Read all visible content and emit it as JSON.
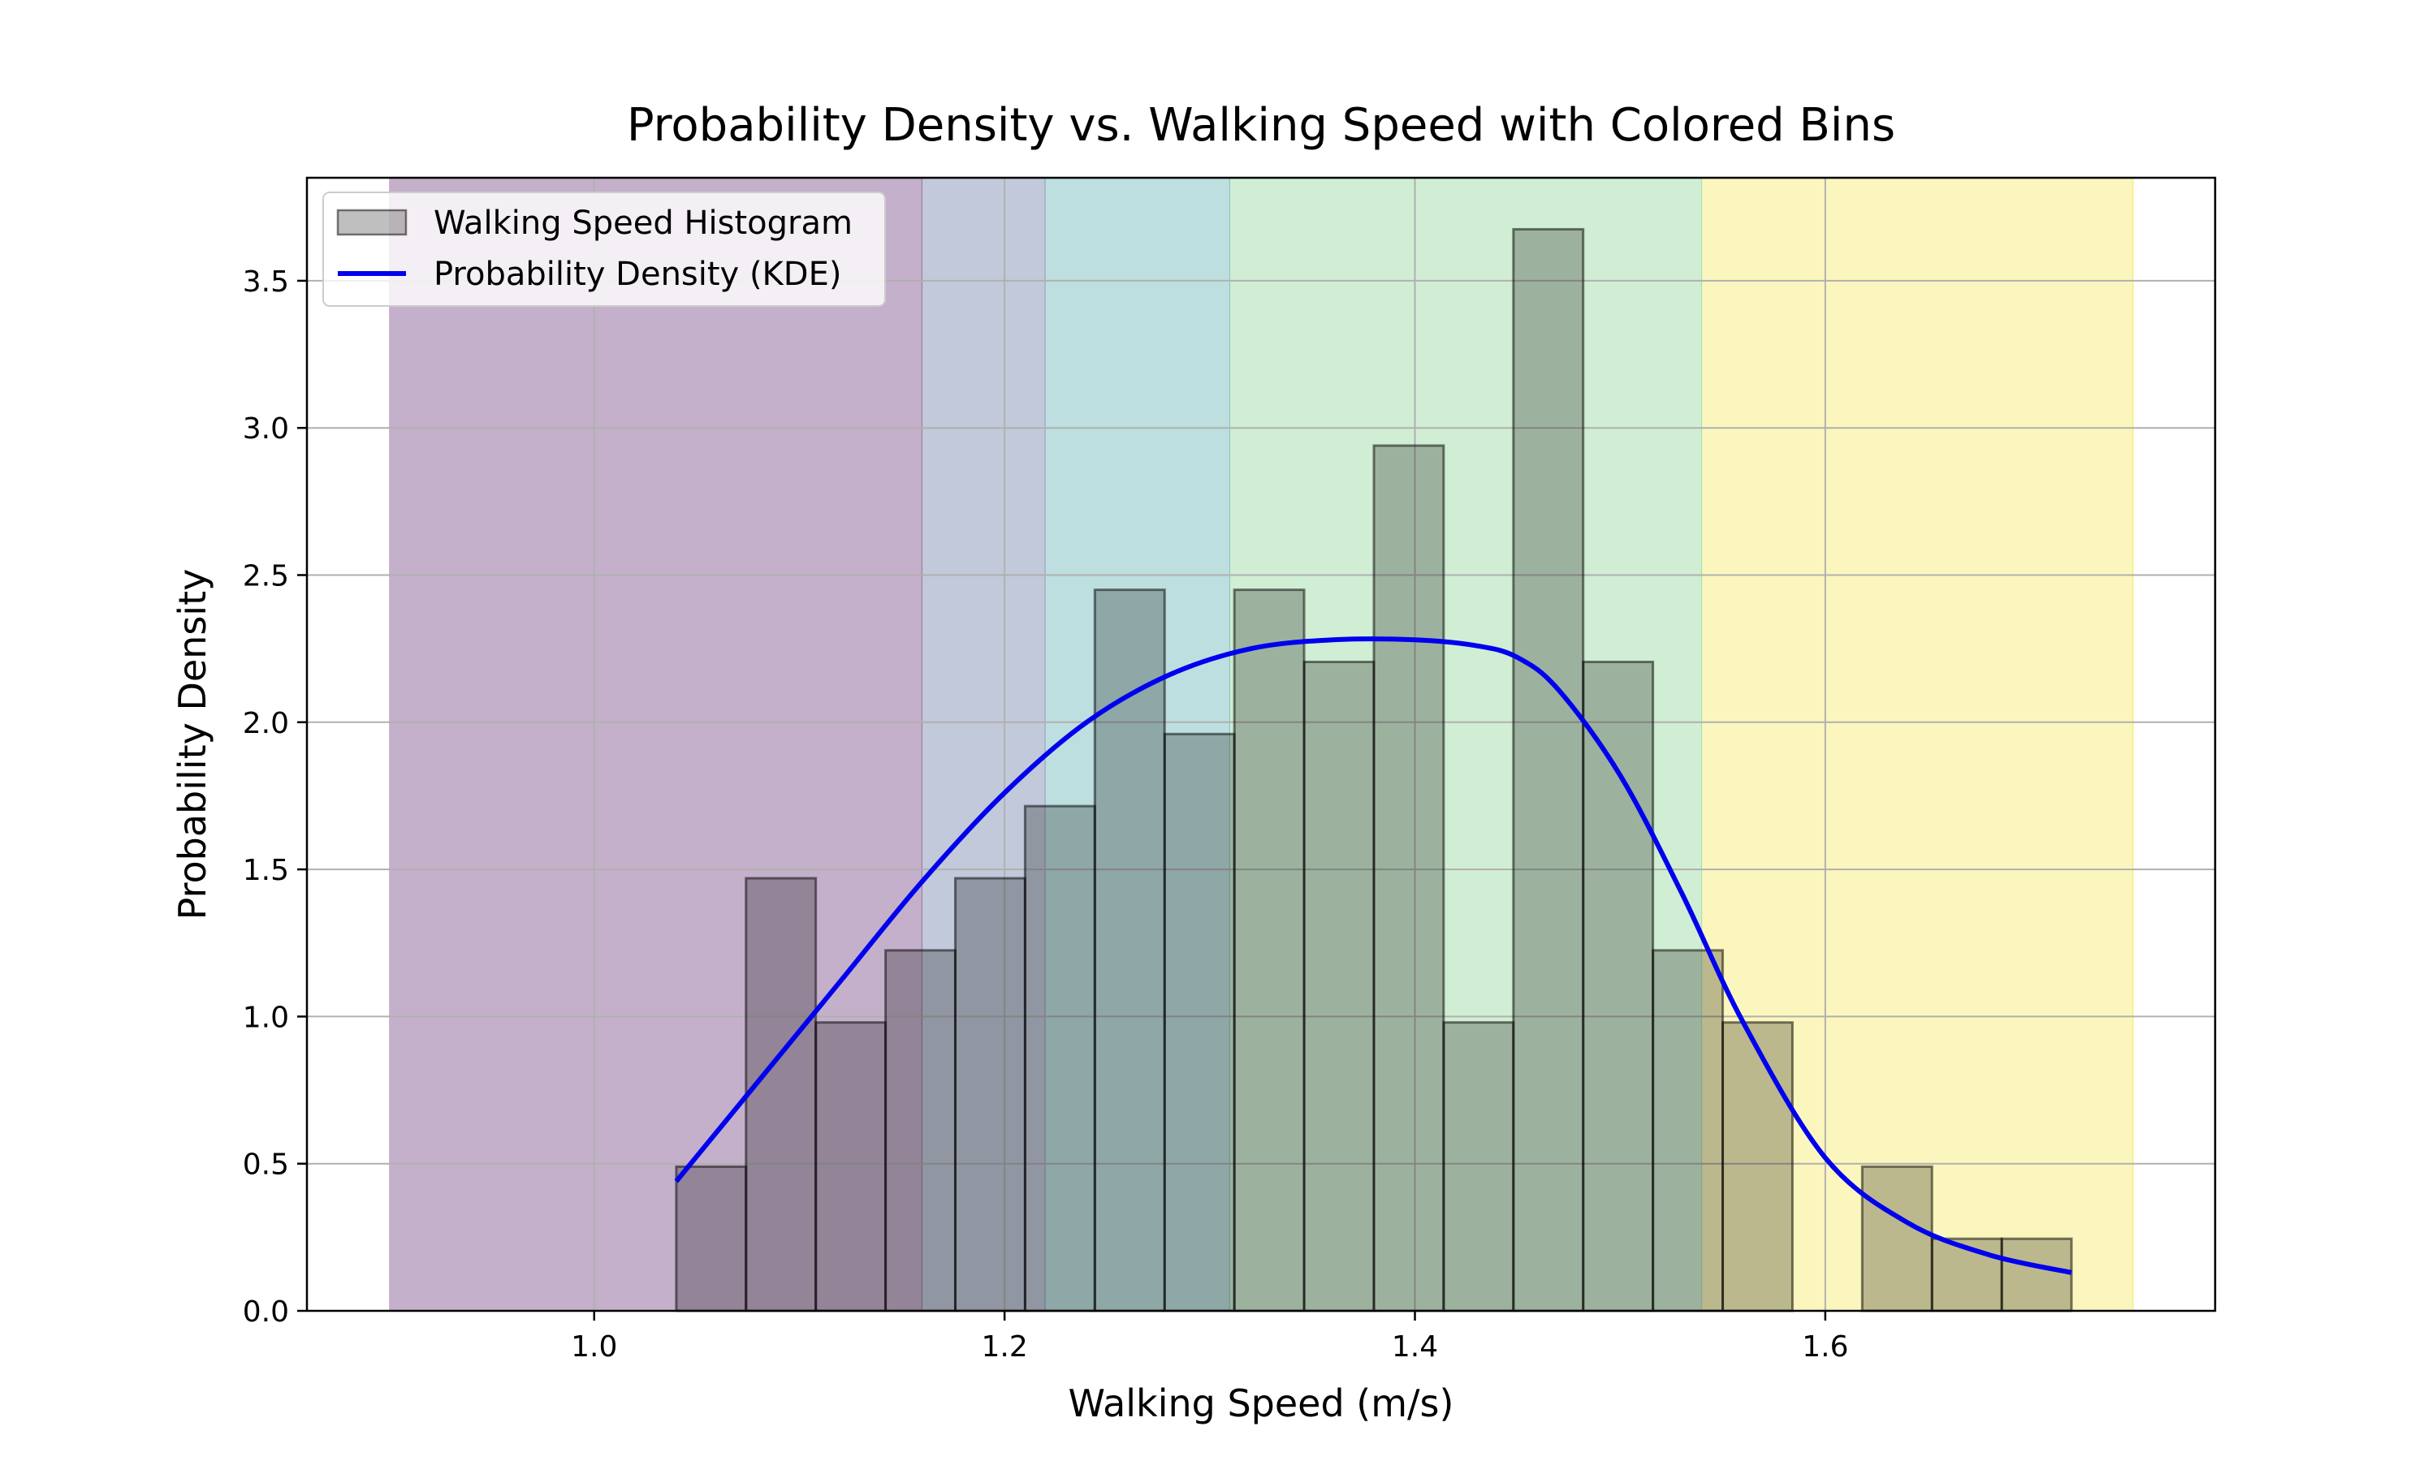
{
  "chart_data": {
    "type": "bar",
    "title": "Probability Density vs. Walking Speed with Colored Bins",
    "xlabel": "Walking Speed (m/s)",
    "ylabel": "Probability Density",
    "xlim": [
      0.86,
      1.79
    ],
    "ylim": [
      0,
      3.85
    ],
    "xticks": [
      1.0,
      1.2,
      1.4,
      1.6
    ],
    "xtick_labels": [
      "1.0",
      "1.2",
      "1.4",
      "1.6"
    ],
    "yticks": [
      0.0,
      0.5,
      1.0,
      1.5,
      2.0,
      2.5,
      3.0,
      3.5
    ],
    "ytick_labels": [
      "0.0",
      "0.5",
      "1.0",
      "1.5",
      "2.0",
      "2.5",
      "3.0",
      "3.5"
    ],
    "grid": true,
    "legend_position": "top-left",
    "legend": [
      {
        "label": "Walking Speed Histogram",
        "kind": "patch"
      },
      {
        "label": "Probability Density (KDE)",
        "kind": "line"
      }
    ],
    "colored_bins": [
      {
        "x0": 0.9,
        "x1": 1.16,
        "color": "#c5b0cb"
      },
      {
        "x0": 1.16,
        "x1": 1.22,
        "color": "#c2c9da"
      },
      {
        "x0": 1.22,
        "x1": 1.31,
        "color": "#bedfdf"
      },
      {
        "x0": 1.31,
        "x1": 1.54,
        "color": "#d0eed3"
      },
      {
        "x0": 1.54,
        "x1": 1.75,
        "color": "#fbf6bd"
      }
    ],
    "histogram": {
      "name": "Walking Speed Histogram",
      "bin_edges": [
        1.04,
        1.074,
        1.108,
        1.142,
        1.176,
        1.21,
        1.244,
        1.278,
        1.312,
        1.346,
        1.38,
        1.414,
        1.448,
        1.482,
        1.516,
        1.55,
        1.584,
        1.618,
        1.652,
        1.686,
        1.72
      ],
      "values": [
        0.49,
        1.47,
        0.98,
        1.225,
        1.47,
        1.715,
        2.45,
        1.96,
        2.45,
        2.205,
        2.94,
        0.98,
        3.675,
        2.205,
        1.225,
        0.98,
        0,
        0.49,
        0.245,
        0.245
      ]
    },
    "kde": {
      "name": "Probability Density (KDE)",
      "color": "#0000ee",
      "x": [
        1.04,
        1.08,
        1.12,
        1.16,
        1.2,
        1.24,
        1.28,
        1.32,
        1.36,
        1.4,
        1.43,
        1.45,
        1.47,
        1.5,
        1.53,
        1.56,
        1.6,
        1.64,
        1.68,
        1.72
      ],
      "y": [
        0.44,
        0.78,
        1.12,
        1.46,
        1.76,
        2.0,
        2.16,
        2.25,
        2.28,
        2.28,
        2.26,
        2.22,
        2.11,
        1.82,
        1.42,
        0.98,
        0.52,
        0.3,
        0.19,
        0.13
      ]
    }
  }
}
